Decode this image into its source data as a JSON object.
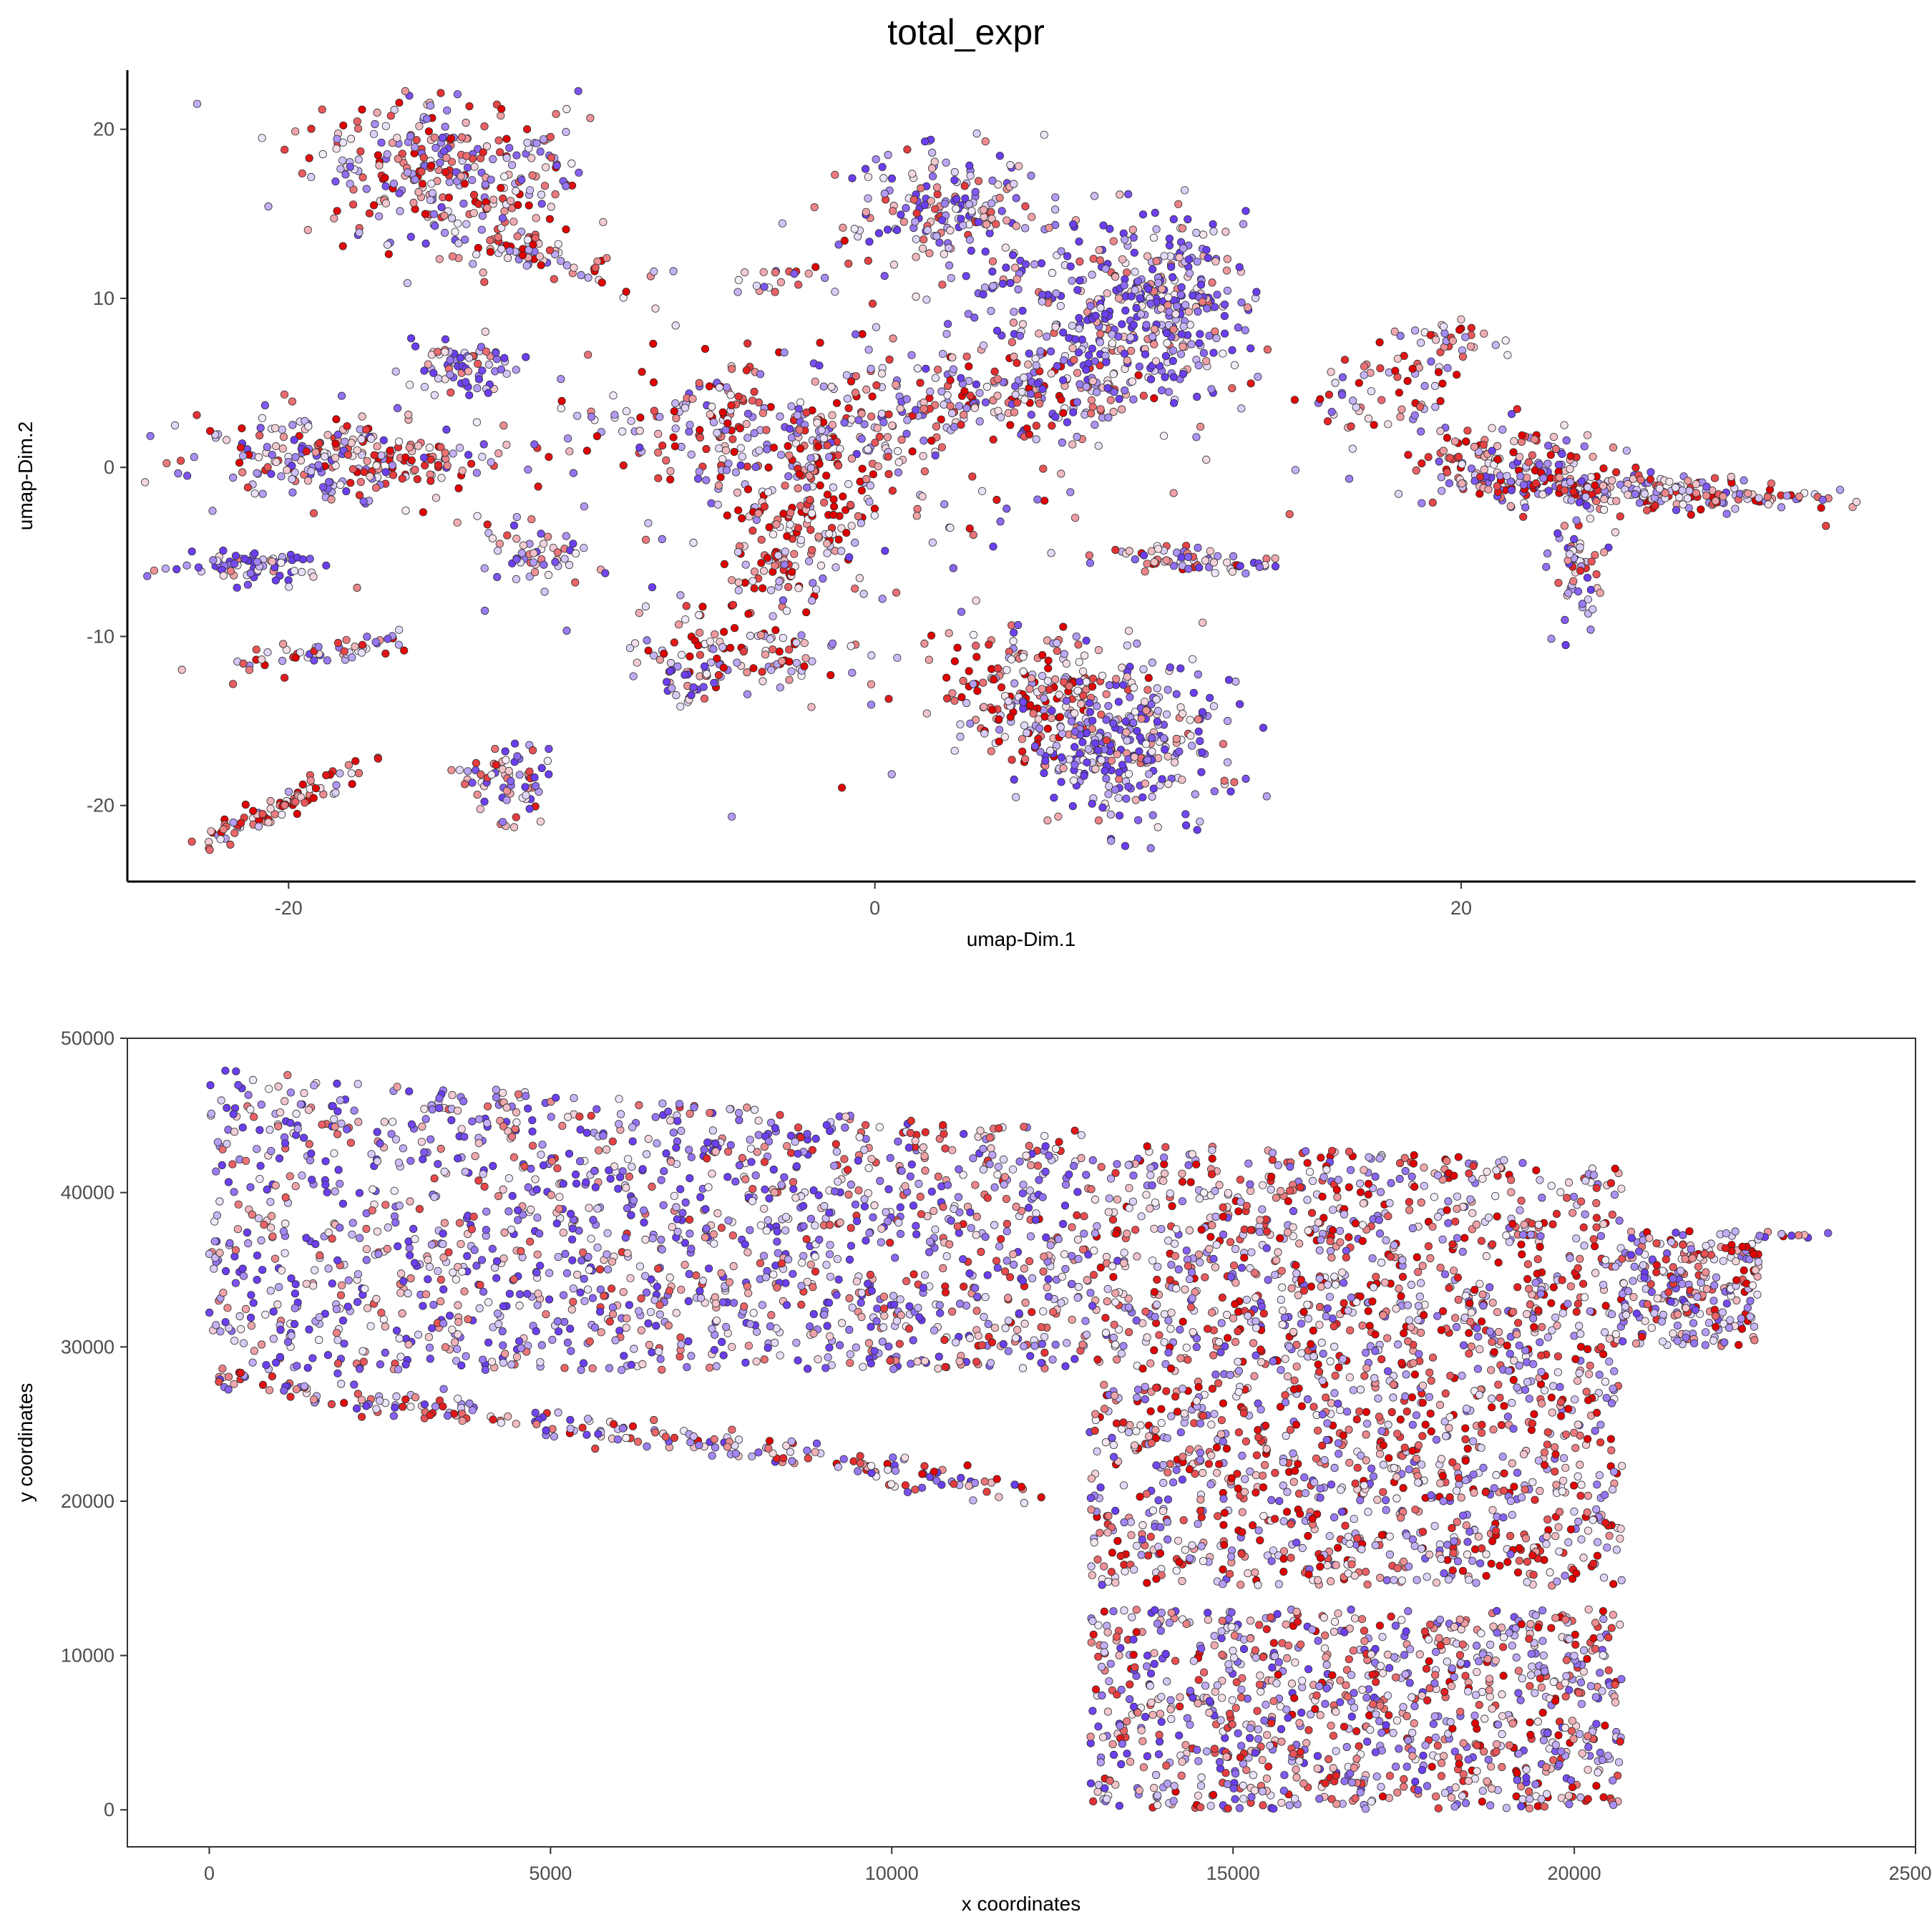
{
  "title": "total_expr",
  "colors": {
    "low": "#6b3ef0",
    "mid": "#f5f0f8",
    "high": "#e00000",
    "outline": "#303030"
  },
  "chart_data": [
    {
      "type": "scatter",
      "xlabel": "umap-Dim.1",
      "ylabel": "umap-Dim.2",
      "xlim": [
        -25.5,
        35.5
      ],
      "ylim": [
        -24.5,
        23.5
      ],
      "xticks": [
        -20,
        0,
        20
      ],
      "xtick_labels": [
        "-20",
        "0",
        "20"
      ],
      "yticks": [
        -20,
        -10,
        0,
        10,
        20
      ],
      "ytick_labels": [
        "-20",
        "-10",
        "0",
        "10",
        "20"
      ],
      "frame": "left-bottom axis lines only",
      "grid": false,
      "color_by": "total_expr",
      "clusters": [
        {
          "x": -14.5,
          "y": 17.5,
          "sx": 2.6,
          "sy": 2.2,
          "n": 320,
          "rot": -33,
          "bias": 0.55
        },
        {
          "x": -11.5,
          "y": 12.5,
          "sx": 1.8,
          "sy": 0.6,
          "n": 60,
          "rot": -30,
          "bias": 0.7
        },
        {
          "x": -14.0,
          "y": 6.0,
          "sx": 1.0,
          "sy": 1.0,
          "n": 70,
          "rot": 0,
          "bias": 0.3
        },
        {
          "x": -18.0,
          "y": 0.5,
          "sx": 2.8,
          "sy": 1.2,
          "n": 260,
          "rot": 0,
          "bias": 0.5
        },
        {
          "x": -21.5,
          "y": -5.8,
          "sx": 1.5,
          "sy": 0.5,
          "n": 80,
          "rot": 0,
          "bias": 0.2
        },
        {
          "x": -19.0,
          "y": -11.0,
          "sx": 2.0,
          "sy": 0.45,
          "n": 55,
          "rot": 18,
          "bias": 0.55
        },
        {
          "x": -20.0,
          "y": -19.8,
          "sx": 2.0,
          "sy": 0.4,
          "n": 85,
          "rot": 40,
          "bias": 0.75
        },
        {
          "x": -12.5,
          "y": -18.5,
          "sx": 0.7,
          "sy": 1.2,
          "n": 70,
          "rot": 0,
          "bias": 0.4
        },
        {
          "x": -11.5,
          "y": -5.0,
          "sx": 1.3,
          "sy": 0.8,
          "n": 55,
          "rot": -20,
          "bias": 0.45
        },
        {
          "x": -4.0,
          "y": 2.0,
          "sx": 3.2,
          "sy": 2.0,
          "n": 240,
          "rot": 0,
          "bias": 0.6
        },
        {
          "x": -2.5,
          "y": -4.0,
          "sx": 1.2,
          "sy": 3.2,
          "n": 180,
          "rot": -15,
          "bias": 0.85
        },
        {
          "x": -4.5,
          "y": -11.0,
          "sx": 1.8,
          "sy": 1.2,
          "n": 90,
          "rot": 0,
          "bias": 0.65
        },
        {
          "x": -6.5,
          "y": -12.5,
          "sx": 0.6,
          "sy": 0.8,
          "n": 30,
          "rot": 0,
          "bias": 0.35
        },
        {
          "x": -3.0,
          "y": 11.0,
          "sx": 1.0,
          "sy": 0.4,
          "n": 20,
          "rot": 0,
          "bias": 0.6
        },
        {
          "x": 2.5,
          "y": 15.0,
          "sx": 1.8,
          "sy": 1.8,
          "n": 180,
          "rot": 0,
          "bias": 0.35
        },
        {
          "x": 4.5,
          "y": 4.0,
          "sx": 3.8,
          "sy": 1.3,
          "n": 220,
          "rot": 10,
          "bias": 0.55
        },
        {
          "x": 8.0,
          "y": 9.0,
          "sx": 2.2,
          "sy": 2.8,
          "n": 300,
          "rot": 0,
          "bias": 0.25
        },
        {
          "x": 10.5,
          "y": 10.0,
          "sx": 0.9,
          "sy": 2.6,
          "n": 140,
          "rot": 0,
          "bias": 0.2
        },
        {
          "x": 5.5,
          "y": -13.5,
          "sx": 1.6,
          "sy": 1.8,
          "n": 200,
          "rot": 0,
          "bias": 0.75
        },
        {
          "x": 8.5,
          "y": -16.5,
          "sx": 1.8,
          "sy": 2.4,
          "n": 300,
          "rot": 0,
          "bias": 0.25
        },
        {
          "x": 11.0,
          "y": -5.5,
          "sx": 1.5,
          "sy": 0.4,
          "n": 65,
          "rot": -5,
          "bias": 0.5
        },
        {
          "x": 18.0,
          "y": 5.5,
          "sx": 1.2,
          "sy": 0.5,
          "n": 25,
          "rot": 0,
          "bias": 0.7
        },
        {
          "x": 19.5,
          "y": 7.5,
          "sx": 0.9,
          "sy": 0.7,
          "n": 35,
          "rot": 0,
          "bias": 0.65
        },
        {
          "x": 16.5,
          "y": 3.0,
          "sx": 1.5,
          "sy": 0.8,
          "n": 30,
          "rot": -10,
          "bias": 0.55
        },
        {
          "x": 22.0,
          "y": 0.0,
          "sx": 2.0,
          "sy": 1.2,
          "n": 180,
          "rot": -18,
          "bias": 0.55
        },
        {
          "x": 27.0,
          "y": -1.5,
          "sx": 3.5,
          "sy": 0.5,
          "n": 200,
          "rot": -5,
          "bias": 0.55
        },
        {
          "x": 24.0,
          "y": -5.5,
          "sx": 0.5,
          "sy": 1.8,
          "n": 60,
          "rot": 0,
          "bias": 0.4
        },
        {
          "x": 0.0,
          "y": -2.0,
          "sx": 6.0,
          "sy": 7.0,
          "n": 150,
          "rot": 0,
          "bias": 0.5
        }
      ]
    },
    {
      "type": "scatter",
      "xlabel": "x coordinates",
      "ylabel": "y coordinates",
      "xlim": [
        -1200,
        25000
      ],
      "ylim": [
        -2400,
        50000
      ],
      "xticks": [
        0,
        5000,
        10000,
        15000,
        20000,
        25000
      ],
      "xtick_labels": [
        "0",
        "5000",
        "10000",
        "15000",
        "20000",
        "25000"
      ],
      "yticks": [
        0,
        10000,
        20000,
        30000,
        40000,
        50000
      ],
      "ytick_labels": [
        "0",
        "10000",
        "20000",
        "30000",
        "40000",
        "50000"
      ],
      "frame": "full panel border",
      "grid": false,
      "color_by": "total_expr",
      "regions": [
        {
          "x0": 0,
          "x1": 12900,
          "y0": 28500,
          "y1": 48000,
          "n": 1600,
          "bias": 0.35,
          "topSlope": -0.31,
          "topAt0": 48000
        },
        {
          "x0": 12900,
          "x1": 20700,
          "y0": 20000,
          "y1": 43000,
          "n": 1500,
          "bias": 0.6,
          "topSlope": -0.31,
          "topAt0": 48000
        },
        {
          "x0": 20700,
          "x1": 22700,
          "y0": 30000,
          "y1": 37500,
          "n": 260,
          "bias": 0.55,
          "topSlope": 0,
          "topAt0": 37500
        },
        {
          "x0": 12900,
          "x1": 20700,
          "y0": 14500,
          "y1": 19500,
          "n": 360,
          "bias": 0.6,
          "topSlope": 0,
          "topAt0": 19500
        },
        {
          "x0": 12900,
          "x1": 20700,
          "y0": 0,
          "y1": 13000,
          "n": 1000,
          "bias": 0.5,
          "topSlope": 0,
          "topAt0": 13000
        }
      ],
      "bands": [
        {
          "x0": 100,
          "x1": 12200,
          "yAt0": 28000,
          "slope": -0.6,
          "thick": 500,
          "n": 240,
          "bias": 0.45
        },
        {
          "x0": 22700,
          "x1": 23900,
          "yAt0": 37300,
          "slope": 0,
          "thick": 150,
          "n": 10,
          "bias": 0.5
        }
      ]
    }
  ]
}
